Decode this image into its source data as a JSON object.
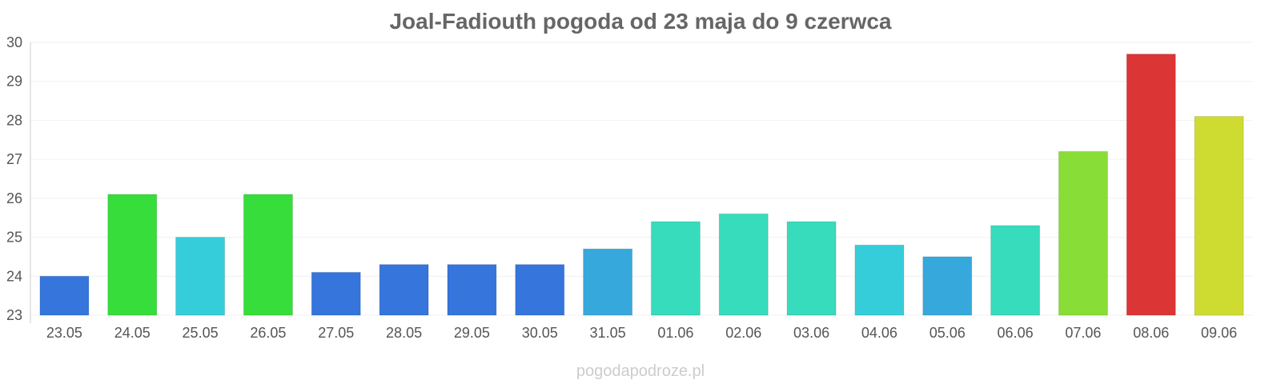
{
  "chart_data": {
    "type": "bar",
    "title": "Joal-Fadiouth pogoda od 23 maja do 9 czerwca",
    "xlabel": "",
    "ylabel": "",
    "categories": [
      "23.05",
      "24.05",
      "25.05",
      "26.05",
      "27.05",
      "28.05",
      "29.05",
      "30.05",
      "31.05",
      "01.06",
      "02.06",
      "03.06",
      "04.06",
      "05.06",
      "06.06",
      "07.06",
      "08.06",
      "09.06"
    ],
    "values": [
      24.0,
      26.1,
      25.0,
      26.1,
      24.1,
      24.3,
      24.3,
      24.3,
      24.7,
      25.4,
      25.6,
      25.4,
      24.8,
      24.5,
      25.3,
      27.2,
      29.7,
      28.1
    ],
    "colors": [
      "#3575dc",
      "#37dd3b",
      "#36cdda",
      "#37dd3b",
      "#3575dc",
      "#3575dc",
      "#3575dc",
      "#3575dc",
      "#36a8dc",
      "#36dcbc",
      "#36dcbc",
      "#36dcbc",
      "#36cdda",
      "#36a8dc",
      "#36dcbc",
      "#88dd37",
      "#dc3535",
      "#cedc32"
    ],
    "ylim": [
      23,
      30
    ],
    "yticks": [
      23,
      24,
      25,
      26,
      27,
      28,
      29,
      30
    ],
    "grid": true,
    "legend": "none"
  },
  "watermark": "pogodapodroze.pl"
}
